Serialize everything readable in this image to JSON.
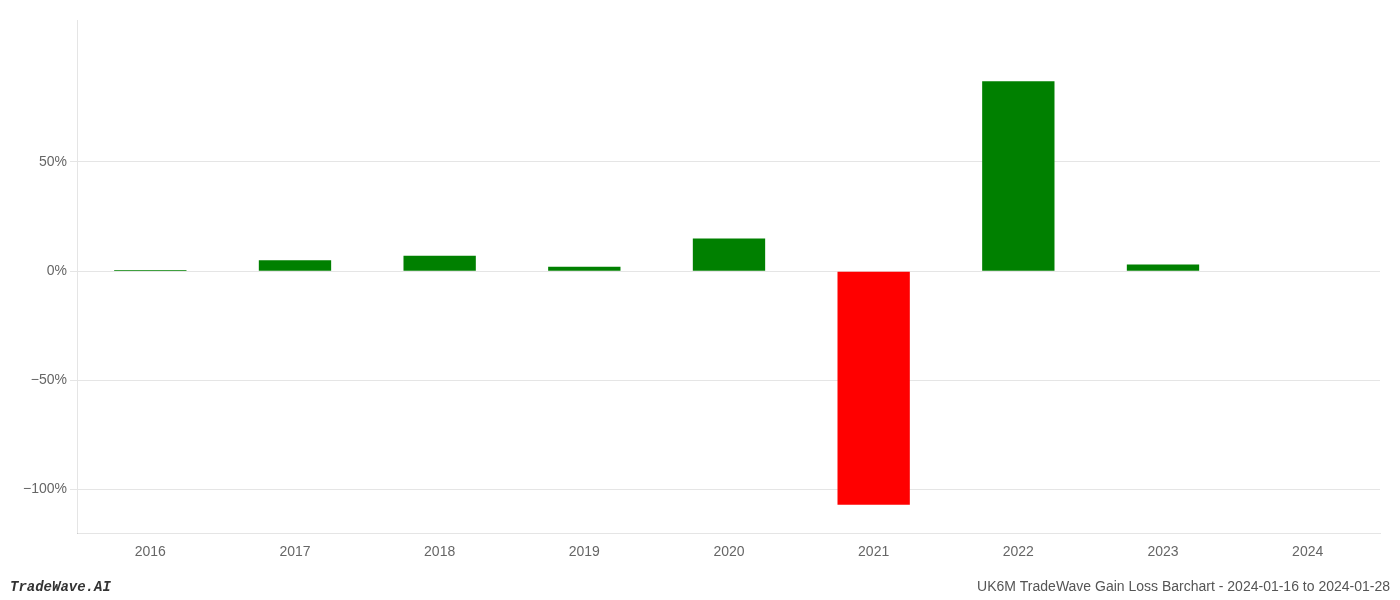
{
  "chart_data": {
    "type": "bar",
    "categories": [
      "2016",
      "2017",
      "2018",
      "2019",
      "2020",
      "2021",
      "2022",
      "2023",
      "2024"
    ],
    "values": [
      0.5,
      5.0,
      7.0,
      2.0,
      15.0,
      -107.0,
      87.0,
      3.0,
      0.0
    ],
    "colors": [
      "#008000",
      "#008000",
      "#008000",
      "#008000",
      "#008000",
      "#ff0000",
      "#008000",
      "#008000",
      "#008000"
    ],
    "ylim": [
      -120,
      115
    ],
    "yticks": [
      {
        "value": 50,
        "label": "50%"
      },
      {
        "value": 0,
        "label": "0%"
      },
      {
        "value": -50,
        "label": "−50%"
      },
      {
        "value": -100,
        "label": "−100%"
      }
    ],
    "grid": true,
    "annotations": [
      "TradeWave.AI",
      "UK6M TradeWave Gain Loss Barchart - 2024-01-16 to 2024-01-28"
    ]
  }
}
